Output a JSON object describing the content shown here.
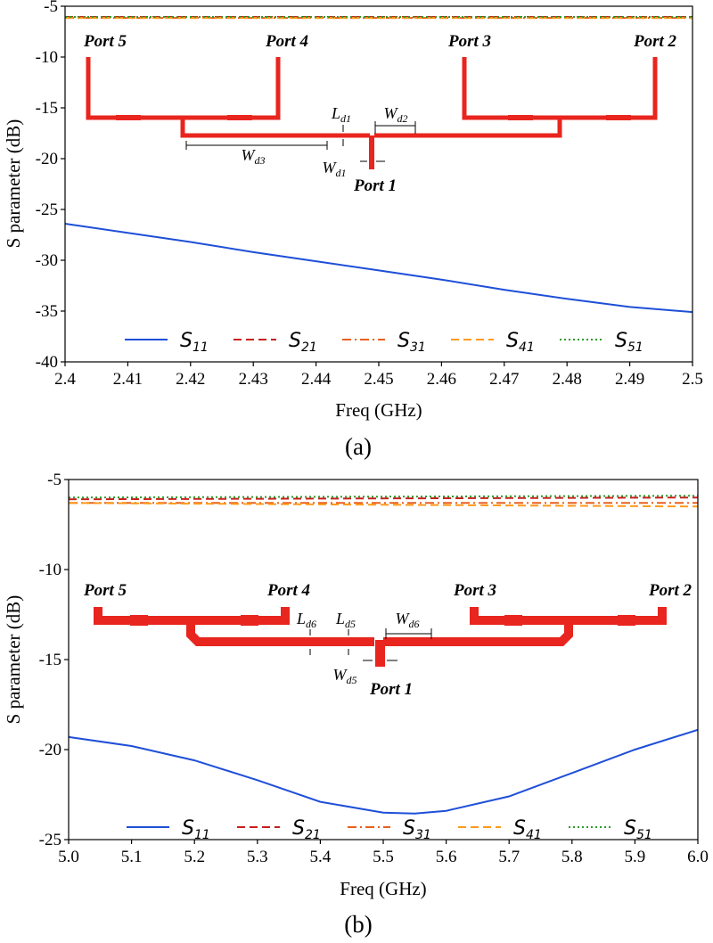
{
  "colors": {
    "S11": "#1f4fd8",
    "S21": "#c8201e",
    "S31": "#e8601e",
    "S41": "#ff9a1a",
    "S51": "#2e9a2e",
    "layout": "#e8251e"
  },
  "chart_data": [
    {
      "type": "line",
      "caption": "(a)",
      "xlabel": "Freq (GHz)",
      "ylabel": "S parameter (dB)",
      "xlim": [
        2.4,
        2.5
      ],
      "ylim": [
        -40,
        -5
      ],
      "xticks": [
        "2.4",
        "2.41",
        "2.42",
        "2.43",
        "2.44",
        "2.45",
        "2.46",
        "2.47",
        "2.48",
        "2.49",
        "2.5"
      ],
      "yticks": [
        "-5",
        "-10",
        "-15",
        "-20",
        "-25",
        "-30",
        "-35",
        "-40"
      ],
      "legend_position": "lower center",
      "ports": [
        "Port 5",
        "Port 4",
        "Port 3",
        "Port 2",
        "Port 1"
      ],
      "dimensions": [
        {
          "base": "L",
          "sub": "d1"
        },
        {
          "base": "W",
          "sub": "d2"
        },
        {
          "base": "W",
          "sub": "d3"
        },
        {
          "base": "W",
          "sub": "d1"
        }
      ],
      "series": [
        {
          "name": "S11",
          "legend_base": "S",
          "legend_sub": "11",
          "style": "solid",
          "x": [
            2.4,
            2.41,
            2.42,
            2.43,
            2.44,
            2.45,
            2.46,
            2.47,
            2.48,
            2.49,
            2.5
          ],
          "y": [
            -26.4,
            -27.3,
            -28.2,
            -29.2,
            -30.1,
            -31.0,
            -31.9,
            -32.9,
            -33.8,
            -34.6,
            -35.1
          ]
        },
        {
          "name": "S21",
          "legend_base": "S",
          "legend_sub": "21",
          "style": "dashed",
          "x": [
            2.4,
            2.5
          ],
          "y": [
            -6.05,
            -6.05
          ]
        },
        {
          "name": "S31",
          "legend_base": "S",
          "legend_sub": "31",
          "style": "dashdot",
          "x": [
            2.4,
            2.5
          ],
          "y": [
            -6.15,
            -6.15
          ]
        },
        {
          "name": "S41",
          "legend_base": "S",
          "legend_sub": "41",
          "style": "dashed",
          "x": [
            2.4,
            2.5
          ],
          "y": [
            -6.15,
            -6.15
          ]
        },
        {
          "name": "S51",
          "legend_base": "S",
          "legend_sub": "51",
          "style": "dotted",
          "x": [
            2.4,
            2.5
          ],
          "y": [
            -6.05,
            -6.05
          ]
        }
      ]
    },
    {
      "type": "line",
      "caption": "(b)",
      "xlabel": "Freq (GHz)",
      "ylabel": "S parameter (dB)",
      "xlim": [
        5.0,
        6.0
      ],
      "ylim": [
        -25,
        -5
      ],
      "xticks": [
        "5.0",
        "5.1",
        "5.2",
        "5.3",
        "5.4",
        "5.5",
        "5.6",
        "5.7",
        "5.8",
        "5.9",
        "6.0"
      ],
      "yticks": [
        "-5",
        "-10",
        "-15",
        "-20",
        "-25"
      ],
      "legend_position": "lower center",
      "ports": [
        "Port 5",
        "Port 4",
        "Port 3",
        "Port 2",
        "Port 1"
      ],
      "dimensions": [
        {
          "base": "L",
          "sub": "d6"
        },
        {
          "base": "L",
          "sub": "d5"
        },
        {
          "base": "W",
          "sub": "d6"
        },
        {
          "base": "W",
          "sub": "d5"
        }
      ],
      "series": [
        {
          "name": "S11",
          "legend_base": "S",
          "legend_sub": "11",
          "style": "solid",
          "x": [
            5.0,
            5.1,
            5.2,
            5.3,
            5.4,
            5.5,
            5.55,
            5.6,
            5.7,
            5.8,
            5.9,
            6.0
          ],
          "y": [
            -19.3,
            -19.8,
            -20.6,
            -21.7,
            -22.9,
            -23.5,
            -23.55,
            -23.4,
            -22.6,
            -21.3,
            -20.0,
            -18.9
          ]
        },
        {
          "name": "S21",
          "legend_base": "S",
          "legend_sub": "21",
          "style": "dashed",
          "x": [
            5.0,
            6.0
          ],
          "y": [
            -6.1,
            -6.0
          ]
        },
        {
          "name": "S31",
          "legend_base": "S",
          "legend_sub": "31",
          "style": "dashdot",
          "x": [
            5.0,
            6.0
          ],
          "y": [
            -6.3,
            -6.3
          ]
        },
        {
          "name": "S41",
          "legend_base": "S",
          "legend_sub": "41",
          "style": "dashed",
          "x": [
            5.0,
            6.0
          ],
          "y": [
            -6.3,
            -6.5
          ]
        },
        {
          "name": "S51",
          "legend_base": "S",
          "legend_sub": "51",
          "style": "dotted",
          "x": [
            5.0,
            6.0
          ],
          "y": [
            -6.0,
            -5.9
          ]
        }
      ]
    }
  ]
}
